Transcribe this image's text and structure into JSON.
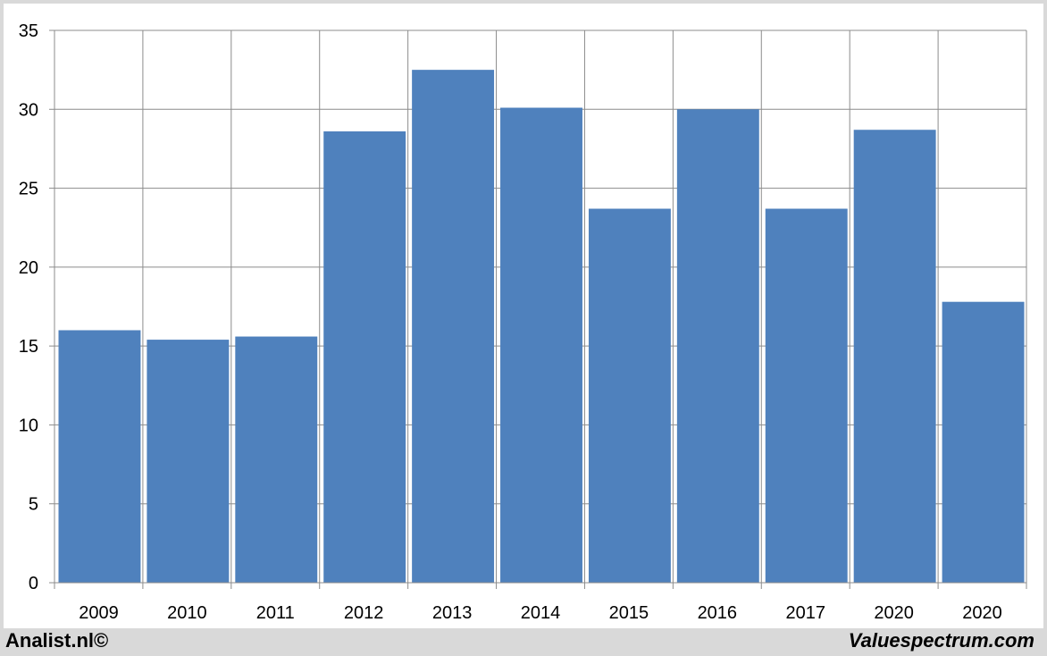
{
  "chart_data": {
    "type": "bar",
    "title": "",
    "xlabel": "",
    "ylabel": "",
    "categories": [
      "2009",
      "2010",
      "2011",
      "2012",
      "2013",
      "2014",
      "2015",
      "2016",
      "2017",
      "2020",
      "2020"
    ],
    "values": [
      16.0,
      15.4,
      15.6,
      28.6,
      32.5,
      30.1,
      23.7,
      30.0,
      23.7,
      28.7,
      17.8
    ],
    "ylim": [
      0,
      35
    ],
    "yticks": [
      0,
      5,
      10,
      15,
      20,
      25,
      30,
      35
    ],
    "grid": true,
    "bar_color": "#4f81bd"
  },
  "footer": {
    "left": "Analist.nl©",
    "right": "Valuespectrum.com"
  }
}
